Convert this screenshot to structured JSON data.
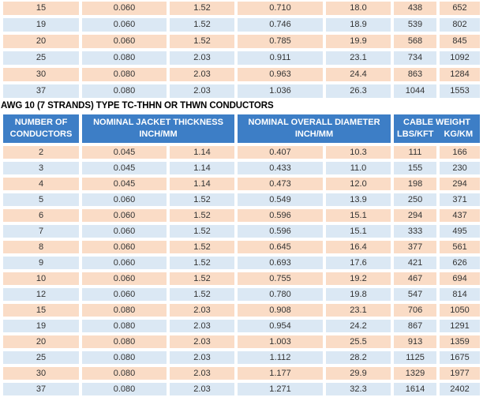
{
  "title": "AWG 10 (7 STRANDS) TYPE TC-THHN OR THWN CONDUCTORS",
  "colors": {
    "header_bg": "#3d7ec6",
    "header_text": "#ffffff",
    "row_peach": "#fadcc6",
    "row_blue": "#dbe8f4",
    "cell_text": "#333333"
  },
  "header": {
    "col1": [
      "NUMBER OF",
      "CONDUCTORS"
    ],
    "col2": [
      "NOMINAL JACKET THICKNESS",
      "INCH/MM"
    ],
    "col3": [
      "NOMINAL OVERALL DIAMETER",
      "INCH/MM"
    ],
    "col4_line1": "CABLE WEIGHT",
    "col4_sub": [
      "LBS/KFT",
      "KG/KM"
    ]
  },
  "column_names": [
    "conductors",
    "jacket-thickness-inch",
    "jacket-thickness-mm",
    "overall-diameter-inch",
    "overall-diameter-mm",
    "weight-lbs-kft",
    "weight-kg-km"
  ],
  "continuation_rows": [
    [
      "15",
      "0.060",
      "1.52",
      "0.710",
      "18.0",
      "438",
      "652"
    ],
    [
      "19",
      "0.060",
      "1.52",
      "0.746",
      "18.9",
      "539",
      "802"
    ],
    [
      "20",
      "0.060",
      "1.52",
      "0.785",
      "19.9",
      "568",
      "845"
    ],
    [
      "25",
      "0.080",
      "2.03",
      "0.911",
      "23.1",
      "734",
      "1092"
    ],
    [
      "30",
      "0.080",
      "2.03",
      "0.963",
      "24.4",
      "863",
      "1284"
    ],
    [
      "37",
      "0.080",
      "2.03",
      "1.036",
      "26.3",
      "1044",
      "1553"
    ]
  ],
  "main_rows": [
    [
      "2",
      "0.045",
      "1.14",
      "0.407",
      "10.3",
      "111",
      "166"
    ],
    [
      "3",
      "0.045",
      "1.14",
      "0.433",
      "11.0",
      "155",
      "230"
    ],
    [
      "4",
      "0.045",
      "1.14",
      "0.473",
      "12.0",
      "198",
      "294"
    ],
    [
      "5",
      "0.060",
      "1.52",
      "0.549",
      "13.9",
      "250",
      "371"
    ],
    [
      "6",
      "0.060",
      "1.52",
      "0.596",
      "15.1",
      "294",
      "437"
    ],
    [
      "7",
      "0.060",
      "1.52",
      "0.596",
      "15.1",
      "333",
      "495"
    ],
    [
      "8",
      "0.060",
      "1.52",
      "0.645",
      "16.4",
      "377",
      "561"
    ],
    [
      "9",
      "0.060",
      "1.52",
      "0.693",
      "17.6",
      "421",
      "626"
    ],
    [
      "10",
      "0.060",
      "1.52",
      "0.755",
      "19.2",
      "467",
      "694"
    ],
    [
      "12",
      "0.060",
      "1.52",
      "0.780",
      "19.8",
      "547",
      "814"
    ],
    [
      "15",
      "0.080",
      "2.03",
      "0.908",
      "23.1",
      "706",
      "1050"
    ],
    [
      "19",
      "0.080",
      "2.03",
      "0.954",
      "24.2",
      "867",
      "1291"
    ],
    [
      "20",
      "0.080",
      "2.03",
      "1.003",
      "25.5",
      "913",
      "1359"
    ],
    [
      "25",
      "0.080",
      "2.03",
      "1.112",
      "28.2",
      "1125",
      "1675"
    ],
    [
      "30",
      "0.080",
      "2.03",
      "1.177",
      "29.9",
      "1329",
      "1977"
    ],
    [
      "37",
      "0.080",
      "2.03",
      "1.271",
      "32.3",
      "1614",
      "2402"
    ]
  ]
}
